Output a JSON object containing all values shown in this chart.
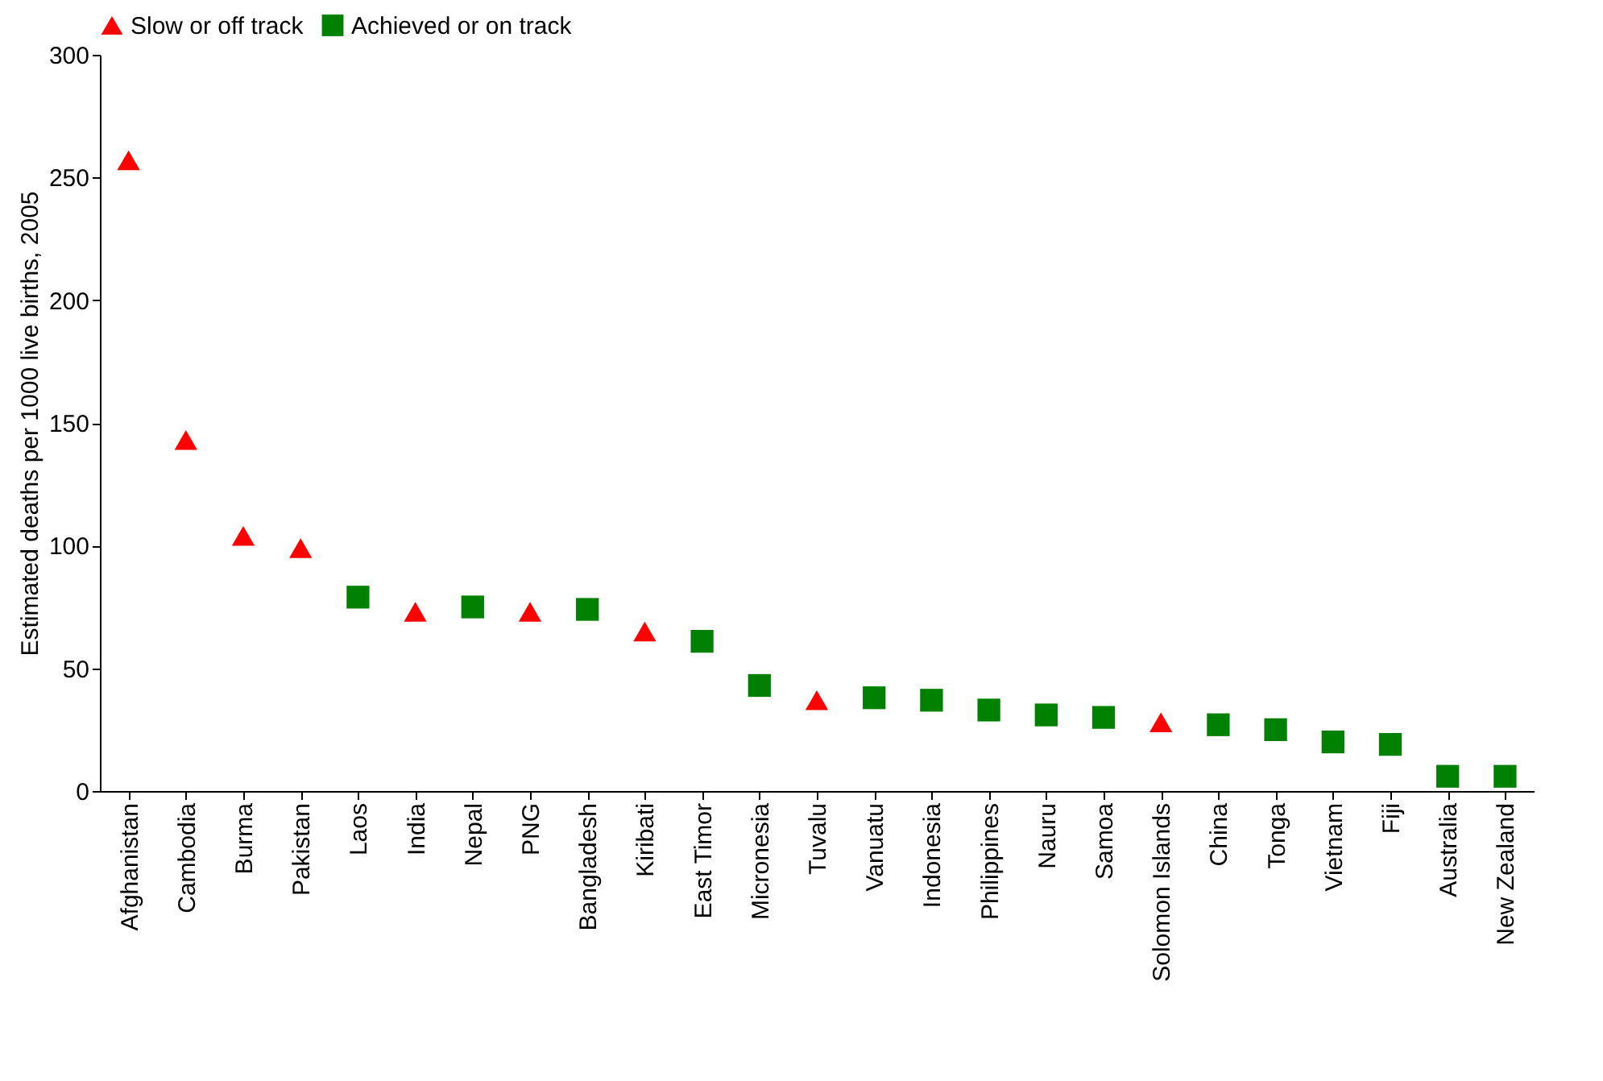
{
  "chart_data": {
    "type": "scatter",
    "ylabel": "Estimated deaths per 1000 live births, 2005",
    "categories": [
      "Afghanistan",
      "Cambodia",
      "Burma",
      "Pakistan",
      "Laos",
      "India",
      "Nepal",
      "PNG",
      "Bangladesh",
      "Kiribati",
      "East Timor",
      "Micronesia",
      "Tuvalu",
      "Vanuatu",
      "Indonesia",
      "Philippines",
      "Nauru",
      "Samoa",
      "Solomon Islands",
      "China",
      "Tonga",
      "Vietnam",
      "Fiji",
      "Australia",
      "New Zealand"
    ],
    "series": [
      {
        "name": "Slow or off track",
        "color": "#ff0000",
        "marker": "triangle",
        "values": [
          257,
          143,
          104,
          99,
          null,
          73,
          null,
          73,
          null,
          65,
          null,
          null,
          37,
          null,
          null,
          null,
          null,
          null,
          28,
          null,
          null,
          null,
          null,
          null,
          null
        ]
      },
      {
        "name": "Achieved or on track",
        "color": "#008000",
        "marker": "square",
        "values": [
          null,
          null,
          null,
          null,
          79,
          null,
          75,
          null,
          74,
          null,
          61,
          43,
          null,
          38,
          37,
          33,
          31,
          30,
          null,
          27,
          25,
          20,
          19,
          6,
          6
        ]
      }
    ],
    "ylim": [
      0,
      300
    ],
    "yticks": [
      0,
      50,
      100,
      150,
      200,
      250,
      300
    ],
    "grid": false,
    "legend": "top left"
  }
}
